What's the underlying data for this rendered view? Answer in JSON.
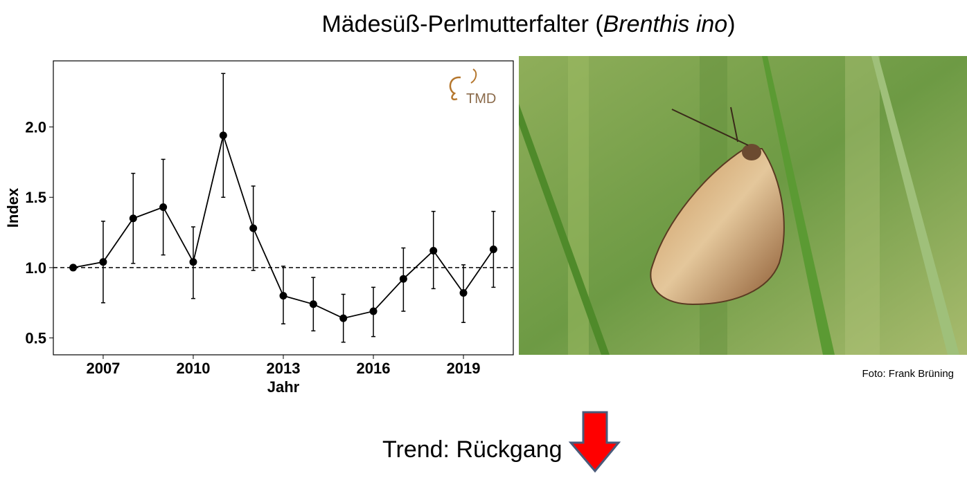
{
  "title": [
    "Mädesüß-Perlmutterfalter (",
    "Brenthis ino",
    ")"
  ],
  "photo_credit": "Foto: Frank Brüning",
  "trend": "Trend: Rückgang",
  "chart_data": {
    "type": "line",
    "xlabel": "Jahr",
    "ylabel": "Index",
    "logo": "TMD",
    "x": [
      2006,
      2007,
      2008,
      2009,
      2010,
      2011,
      2012,
      2013,
      2014,
      2015,
      2016,
      2017,
      2018,
      2019,
      2020
    ],
    "series": [
      {
        "name": "Index",
        "color": "#000000",
        "values": [
          1.0,
          1.04,
          1.35,
          1.43,
          1.04,
          1.94,
          1.28,
          0.8,
          0.74,
          0.64,
          0.69,
          0.92,
          1.12,
          0.82,
          1.13
        ],
        "lower": [
          null,
          0.75,
          1.03,
          1.09,
          0.78,
          1.5,
          0.98,
          0.6,
          0.55,
          0.47,
          0.51,
          0.69,
          0.85,
          0.61,
          0.86
        ],
        "upper": [
          null,
          1.33,
          1.67,
          1.77,
          1.29,
          2.38,
          1.58,
          1.01,
          0.93,
          0.81,
          0.86,
          1.14,
          1.4,
          1.02,
          1.4
        ]
      }
    ],
    "xlim": [
      2005.34,
      2020.66
    ],
    "ylim": [
      0.38,
      2.47
    ],
    "xticks": [
      2007,
      2010,
      2013,
      2016,
      2019
    ],
    "yticks": [
      0.5,
      {
        "value": 1.0,
        "label": "1.0"
      },
      1.5,
      {
        "value": 2.0,
        "label": "2.0"
      }
    ],
    "hline": 1.0,
    "grid": false
  }
}
